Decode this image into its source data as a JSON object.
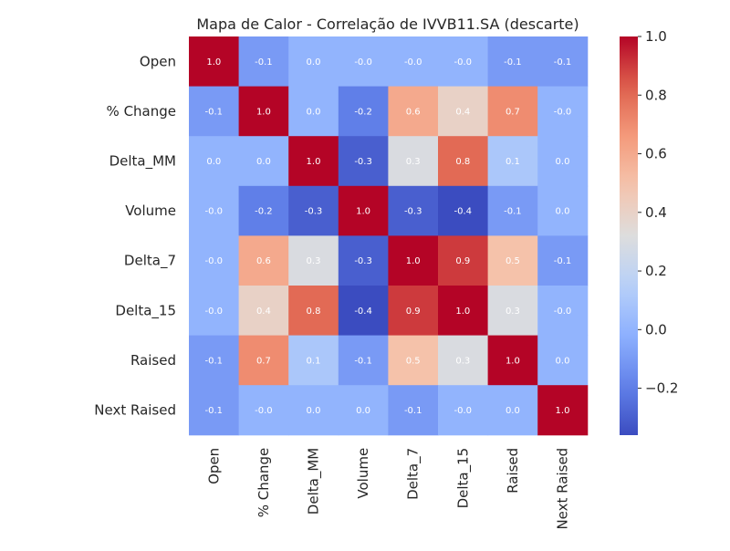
{
  "chart_data": {
    "type": "heatmap",
    "title": "Mapa de Calor - Correlação de IVVB11.SA (descarte)",
    "xlabel": "",
    "ylabel": "",
    "rows": [
      "Open",
      "% Change",
      "Delta_MM",
      "Volume",
      "Delta_7",
      "Delta_15",
      "Raised",
      "Next Raised"
    ],
    "columns": [
      "Open",
      "% Change",
      "Delta_MM",
      "Volume",
      "Delta_7",
      "Delta_15",
      "Raised",
      "Next Raised"
    ],
    "values": [
      [
        1.0,
        -0.1,
        0.0,
        -0.0,
        -0.0,
        -0.0,
        -0.1,
        -0.1
      ],
      [
        -0.1,
        1.0,
        0.0,
        -0.2,
        0.6,
        0.4,
        0.7,
        -0.0
      ],
      [
        0.0,
        0.0,
        1.0,
        -0.3,
        0.3,
        0.8,
        0.1,
        0.0
      ],
      [
        -0.0,
        -0.2,
        -0.3,
        1.0,
        -0.3,
        -0.4,
        -0.1,
        0.0
      ],
      [
        -0.0,
        0.6,
        0.3,
        -0.3,
        1.0,
        0.9,
        0.5,
        -0.1
      ],
      [
        -0.0,
        0.4,
        0.8,
        -0.4,
        0.9,
        1.0,
        0.3,
        -0.0
      ],
      [
        -0.1,
        0.7,
        0.1,
        -0.1,
        0.5,
        0.3,
        1.0,
        0.0
      ],
      [
        -0.1,
        -0.0,
        0.0,
        0.0,
        -0.1,
        -0.0,
        0.0,
        1.0
      ]
    ],
    "labels": [
      [
        "1.0",
        "-0.1",
        "0.0",
        "-0.0",
        "-0.0",
        "-0.0",
        "-0.1",
        "-0.1"
      ],
      [
        "-0.1",
        "1.0",
        "0.0",
        "-0.2",
        "0.6",
        "0.4",
        "0.7",
        "-0.0"
      ],
      [
        "0.0",
        "0.0",
        "1.0",
        "-0.3",
        "0.3",
        "0.8",
        "0.1",
        "0.0"
      ],
      [
        "-0.0",
        "-0.2",
        "-0.3",
        "1.0",
        "-0.3",
        "-0.4",
        "-0.1",
        "0.0"
      ],
      [
        "-0.0",
        "0.6",
        "0.3",
        "-0.3",
        "1.0",
        "0.9",
        "0.5",
        "-0.1"
      ],
      [
        "-0.0",
        "0.4",
        "0.8",
        "-0.4",
        "0.9",
        "1.0",
        "0.3",
        "-0.0"
      ],
      [
        "-0.1",
        "0.7",
        "0.1",
        "-0.1",
        "0.5",
        "0.3",
        "1.0",
        "0.0"
      ],
      [
        "-0.1",
        "-0.0",
        "0.0",
        "0.0",
        "-0.1",
        "-0.0",
        "0.0",
        "1.0"
      ]
    ],
    "colormap": "coolwarm",
    "vmin": -0.36,
    "vmax": 1.0,
    "colorbar_ticks": [
      1.0,
      0.8,
      0.6,
      0.4,
      0.2,
      0.0,
      -0.2
    ],
    "colorbar_tick_labels": [
      "1.0",
      "0.8",
      "0.6",
      "0.4",
      "0.2",
      "0.0",
      "−0.2"
    ]
  }
}
